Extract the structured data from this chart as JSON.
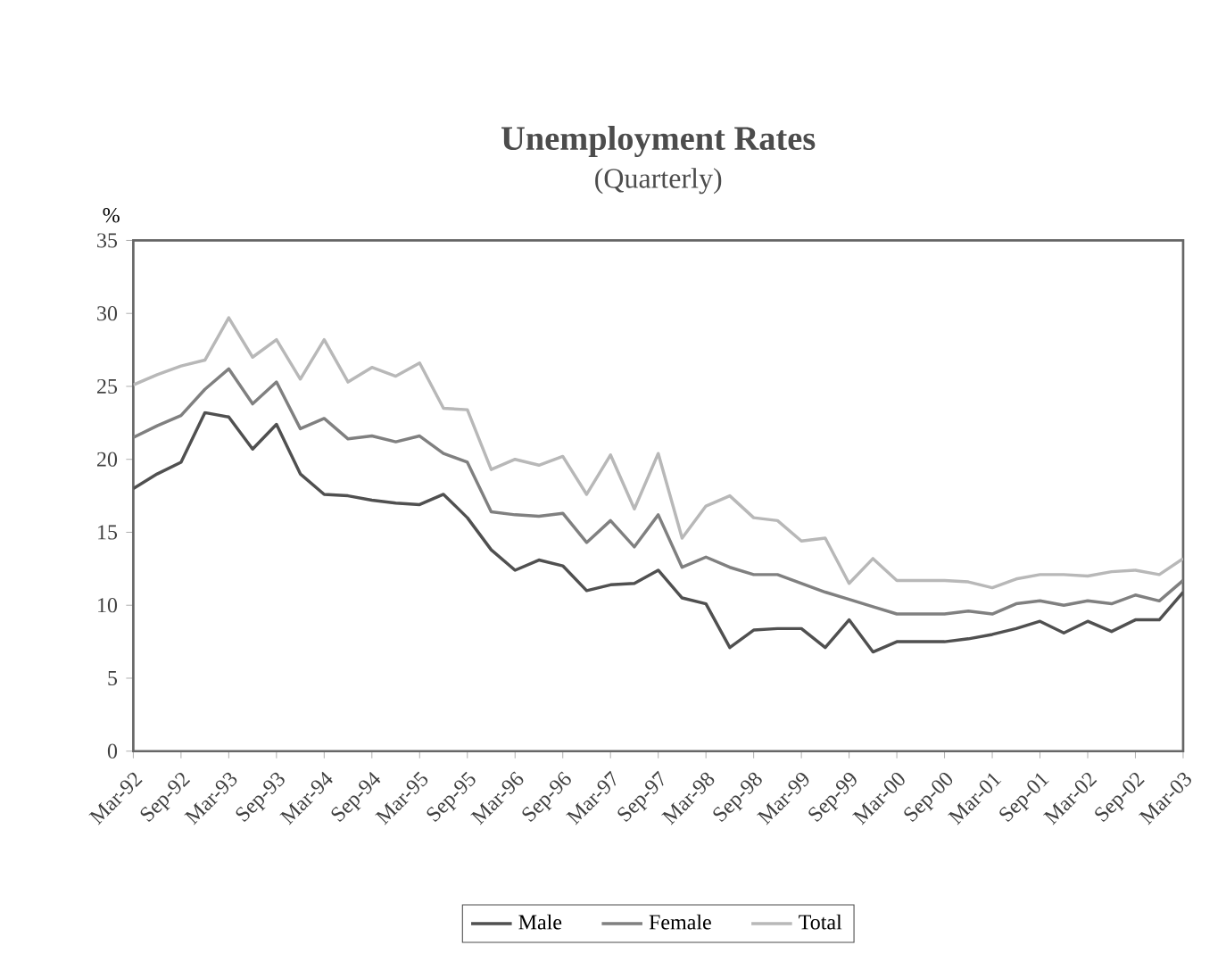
{
  "chart_data": {
    "type": "line",
    "title": "Unemployment Rates",
    "subtitle": "(Quarterly)",
    "ylabel": "%",
    "categories": [
      "Mar-92",
      null,
      "Sep-92",
      null,
      "Mar-93",
      null,
      "Sep-93",
      null,
      "Mar-94",
      null,
      "Sep-94",
      null,
      "Mar-95",
      null,
      "Sep-95",
      null,
      "Mar-96",
      null,
      "Sep-96",
      null,
      "Mar-97",
      null,
      "Sep-97",
      null,
      "Mar-98",
      null,
      "Sep-98",
      null,
      "Mar-99",
      null,
      "Sep-99",
      null,
      "Mar-00",
      null,
      "Sep-00",
      null,
      "Mar-01",
      null,
      "Sep-01",
      null,
      "Mar-02",
      null,
      "Sep-02",
      null,
      "Mar-03"
    ],
    "series": [
      {
        "name": "Male",
        "color": "#505050",
        "values": [
          18.0,
          19.0,
          19.8,
          23.2,
          22.9,
          20.7,
          22.4,
          19.0,
          17.6,
          17.5,
          17.2,
          17.0,
          16.9,
          17.6,
          16.0,
          13.8,
          12.4,
          13.1,
          12.7,
          11.0,
          11.4,
          11.5,
          12.4,
          10.5,
          10.1,
          7.1,
          8.3,
          8.4,
          8.4,
          7.1,
          9.0,
          6.8,
          7.5,
          7.5,
          7.5,
          7.7,
          8.0,
          8.4,
          8.9,
          8.1,
          8.9,
          8.2,
          9.0,
          9.0,
          10.9
        ]
      },
      {
        "name": "Female",
        "color": "#808080",
        "values": [
          21.5,
          22.3,
          23.0,
          24.8,
          26.2,
          23.8,
          25.3,
          22.1,
          22.8,
          21.4,
          21.6,
          21.2,
          21.6,
          20.4,
          19.8,
          16.4,
          16.2,
          16.1,
          16.3,
          14.3,
          15.8,
          14.0,
          16.2,
          12.6,
          13.3,
          12.6,
          12.1,
          12.1,
          11.5,
          10.9,
          10.4,
          9.9,
          9.4,
          9.4,
          9.4,
          9.6,
          9.4,
          10.1,
          10.3,
          10.0,
          10.3,
          10.1,
          10.7,
          10.3,
          11.7
        ]
      },
      {
        "name": "Total",
        "color": "#b8b8b8",
        "values": [
          25.1,
          25.8,
          26.4,
          26.8,
          29.7,
          27.0,
          28.2,
          25.5,
          28.2,
          25.3,
          26.3,
          25.7,
          26.6,
          23.5,
          23.4,
          19.3,
          20.0,
          19.6,
          20.2,
          17.6,
          20.3,
          16.6,
          20.4,
          14.6,
          16.8,
          17.5,
          16.0,
          15.8,
          14.4,
          14.6,
          11.5,
          13.2,
          11.7,
          11.7,
          11.7,
          11.6,
          11.2,
          11.8,
          12.1,
          12.1,
          12.0,
          12.3,
          12.4,
          12.1,
          13.2
        ]
      }
    ],
    "ylim": [
      0,
      35
    ],
    "yticks": [
      0,
      5,
      10,
      15,
      20,
      25,
      30,
      35
    ],
    "legend": "bottom",
    "grid": false,
    "marker": "none",
    "line_style": "solid"
  }
}
